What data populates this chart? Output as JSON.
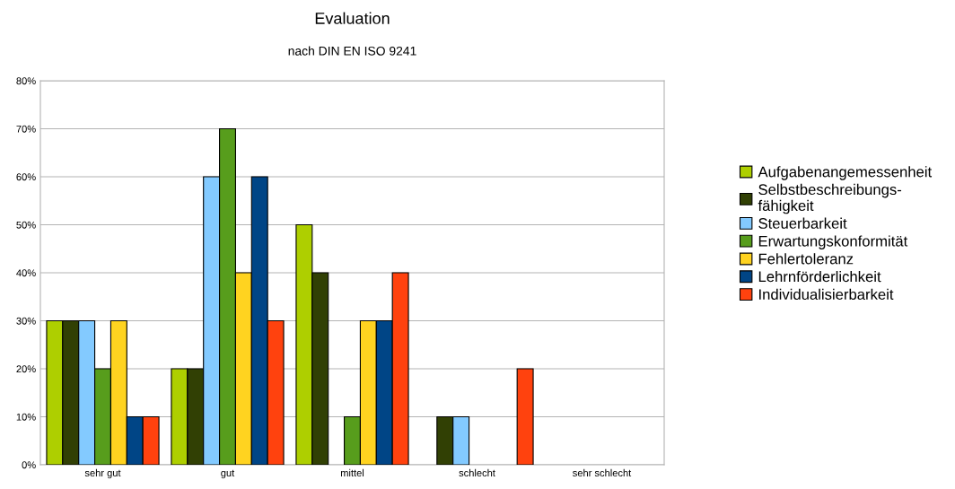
{
  "chart_data": {
    "type": "bar",
    "title": "Evaluation",
    "subtitle": "nach DIN EN ISO 9241",
    "categories": [
      "sehr gut",
      "gut",
      "mittel",
      "schlecht",
      "sehr schlecht"
    ],
    "series": [
      {
        "name": "Aufgabenangemessenheit",
        "color": "#aecf00",
        "values": [
          30,
          20,
          50,
          0,
          0
        ]
      },
      {
        "name": "Selbstbeschreibungs-\nfähigkeit",
        "color": "#314004",
        "values": [
          30,
          20,
          40,
          10,
          0
        ]
      },
      {
        "name": "Steuerbarkeit",
        "color": "#83caff",
        "values": [
          30,
          60,
          0,
          10,
          0
        ]
      },
      {
        "name": "Erwartungskonformität",
        "color": "#579d1c",
        "values": [
          20,
          70,
          10,
          0,
          0
        ]
      },
      {
        "name": "Fehlertoleranz",
        "color": "#ffd320",
        "values": [
          30,
          40,
          30,
          0,
          0
        ]
      },
      {
        "name": "Lehrnförderlichkeit",
        "color": "#004586",
        "values": [
          10,
          60,
          30,
          0,
          0
        ]
      },
      {
        "name": "Individualisierbarkeit",
        "color": "#ff420e",
        "values": [
          10,
          30,
          40,
          20,
          0
        ]
      }
    ],
    "ylim": [
      0,
      80
    ],
    "yticks": [
      {
        "value": 0,
        "label": "0%"
      },
      {
        "value": 10,
        "label": "10%"
      },
      {
        "value": 20,
        "label": "20%"
      },
      {
        "value": 30,
        "label": "30%"
      },
      {
        "value": 40,
        "label": "40%"
      },
      {
        "value": 50,
        "label": "50%"
      },
      {
        "value": 60,
        "label": "60%"
      },
      {
        "value": 70,
        "label": "70%"
      },
      {
        "value": 80,
        "label": "80%"
      }
    ],
    "grid": "y",
    "legend": "right"
  }
}
